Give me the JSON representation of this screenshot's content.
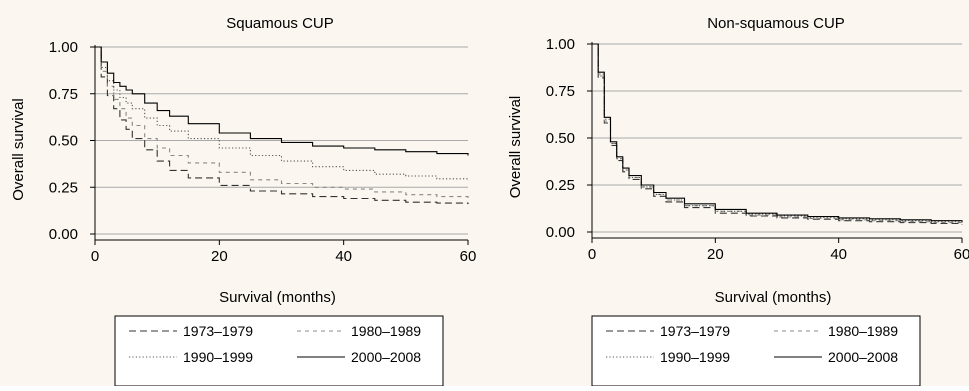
{
  "chart_data": [
    {
      "type": "line",
      "step": true,
      "title": "Squamous CUP",
      "xlabel": "Survival (months)",
      "ylabel": "Overall survival",
      "xlim": [
        0,
        60
      ],
      "ylim": [
        0,
        1
      ],
      "xticks": [
        "0",
        "20",
        "40",
        "60"
      ],
      "yticks": [
        "0.00",
        "0.25",
        "0.50",
        "0.75",
        "1.00"
      ],
      "grid": "horizontal",
      "legend_placement": "bottom",
      "series": [
        {
          "name": "1973–1979",
          "style": "long-dash",
          "color": "#333333",
          "x": [
            0,
            1,
            2,
            3,
            4,
            5,
            6,
            8,
            10,
            12,
            15,
            20,
            25,
            30,
            35,
            40,
            45,
            50,
            55,
            60
          ],
          "y": [
            1.0,
            0.84,
            0.74,
            0.67,
            0.61,
            0.56,
            0.51,
            0.45,
            0.39,
            0.34,
            0.3,
            0.26,
            0.23,
            0.215,
            0.2,
            0.19,
            0.18,
            0.17,
            0.165,
            0.16
          ]
        },
        {
          "name": "1980–1989",
          "style": "short-dash",
          "color": "#888888",
          "x": [
            0,
            1,
            2,
            3,
            4,
            5,
            6,
            8,
            10,
            12,
            15,
            20,
            25,
            30,
            35,
            40,
            45,
            50,
            55,
            60
          ],
          "y": [
            1.0,
            0.87,
            0.79,
            0.72,
            0.67,
            0.62,
            0.58,
            0.51,
            0.46,
            0.42,
            0.38,
            0.33,
            0.29,
            0.27,
            0.25,
            0.24,
            0.225,
            0.21,
            0.2,
            0.19
          ]
        },
        {
          "name": "1990–1999",
          "style": "dotted",
          "color": "#555555",
          "x": [
            0,
            1,
            2,
            3,
            4,
            5,
            6,
            8,
            10,
            12,
            15,
            20,
            25,
            30,
            35,
            40,
            45,
            50,
            55,
            60
          ],
          "y": [
            1.0,
            0.89,
            0.82,
            0.77,
            0.73,
            0.7,
            0.67,
            0.62,
            0.58,
            0.55,
            0.51,
            0.46,
            0.42,
            0.39,
            0.36,
            0.34,
            0.32,
            0.31,
            0.295,
            0.285
          ]
        },
        {
          "name": "2000–2008",
          "style": "solid",
          "color": "#000000",
          "x": [
            0,
            1,
            2,
            3,
            4,
            5,
            6,
            8,
            10,
            12,
            15,
            20,
            25,
            30,
            35,
            40,
            45,
            50,
            55,
            60
          ],
          "y": [
            1.0,
            0.92,
            0.86,
            0.81,
            0.79,
            0.77,
            0.75,
            0.7,
            0.66,
            0.63,
            0.59,
            0.54,
            0.51,
            0.49,
            0.47,
            0.46,
            0.45,
            0.44,
            0.43,
            0.42
          ]
        }
      ]
    },
    {
      "type": "line",
      "step": true,
      "title": "Non-squamous CUP",
      "xlabel": "Survival (months)",
      "ylabel": "Overall survival",
      "xlim": [
        0,
        60
      ],
      "ylim": [
        0,
        1
      ],
      "xticks": [
        "0",
        "20",
        "40",
        "60"
      ],
      "yticks": [
        "0.00",
        "0.25",
        "0.50",
        "0.75",
        "1.00"
      ],
      "grid": "horizontal",
      "legend_placement": "bottom",
      "series": [
        {
          "name": "1973–1979",
          "style": "long-dash",
          "color": "#333333",
          "x": [
            0,
            1,
            2,
            3,
            4,
            5,
            6,
            8,
            10,
            12,
            15,
            20,
            25,
            30,
            35,
            40,
            45,
            50,
            55,
            60
          ],
          "y": [
            1.0,
            0.82,
            0.58,
            0.46,
            0.38,
            0.32,
            0.28,
            0.23,
            0.19,
            0.16,
            0.13,
            0.1,
            0.085,
            0.075,
            0.068,
            0.06,
            0.055,
            0.05,
            0.045,
            0.04
          ]
        },
        {
          "name": "1980–1989",
          "style": "short-dash",
          "color": "#888888",
          "x": [
            0,
            1,
            2,
            3,
            4,
            5,
            6,
            8,
            10,
            12,
            15,
            20,
            25,
            30,
            35,
            40,
            45,
            50,
            55,
            60
          ],
          "y": [
            1.0,
            0.83,
            0.59,
            0.47,
            0.39,
            0.33,
            0.29,
            0.24,
            0.2,
            0.17,
            0.14,
            0.11,
            0.09,
            0.08,
            0.072,
            0.065,
            0.06,
            0.055,
            0.05,
            0.045
          ]
        },
        {
          "name": "1990–1999",
          "style": "dotted",
          "color": "#555555",
          "x": [
            0,
            1,
            2,
            3,
            4,
            5,
            6,
            8,
            10,
            12,
            15,
            20,
            25,
            30,
            35,
            40,
            45,
            50,
            55,
            60
          ],
          "y": [
            1.0,
            0.84,
            0.6,
            0.47,
            0.39,
            0.33,
            0.29,
            0.24,
            0.2,
            0.17,
            0.14,
            0.11,
            0.095,
            0.085,
            0.078,
            0.07,
            0.065,
            0.06,
            0.055,
            0.05
          ]
        },
        {
          "name": "2000–2008",
          "style": "solid",
          "color": "#000000",
          "x": [
            0,
            1,
            2,
            3,
            4,
            5,
            6,
            8,
            10,
            12,
            15,
            20,
            25,
            30,
            35,
            40,
            45,
            50,
            55,
            60
          ],
          "y": [
            1.0,
            0.85,
            0.61,
            0.48,
            0.4,
            0.34,
            0.3,
            0.25,
            0.21,
            0.18,
            0.15,
            0.12,
            0.1,
            0.09,
            0.082,
            0.075,
            0.07,
            0.065,
            0.06,
            0.055
          ]
        }
      ]
    }
  ]
}
